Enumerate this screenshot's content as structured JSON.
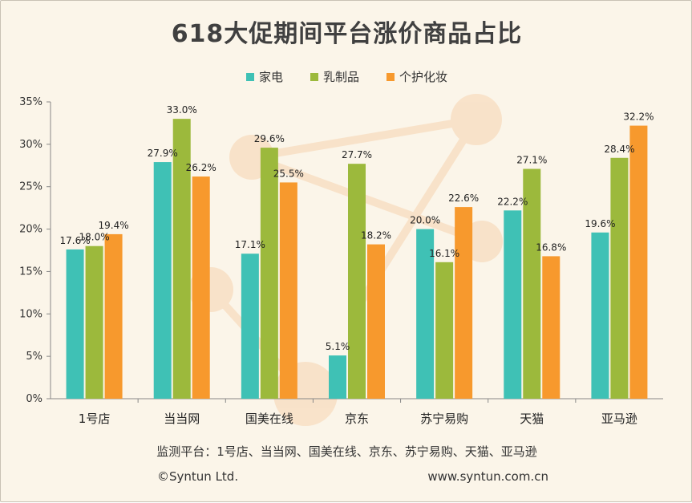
{
  "chart_data": {
    "type": "bar",
    "title": "618大促期间平台涨价商品占比",
    "categories": [
      "1号店",
      "当当网",
      "国美在线",
      "京东",
      "苏宁易购",
      "天猫",
      "亚马逊"
    ],
    "series": [
      {
        "name": "家电",
        "color": "#3fc1b5",
        "values": [
          17.6,
          27.9,
          17.1,
          5.1,
          20.0,
          22.2,
          19.6
        ],
        "labels": [
          "17.6%",
          "27.9%",
          "17.1%",
          "5.1%",
          "20.0%",
          "22.2%",
          "19.6%"
        ]
      },
      {
        "name": "乳制品",
        "color": "#9cb93c",
        "values": [
          18.0,
          33.0,
          29.6,
          27.7,
          16.1,
          27.1,
          28.4
        ],
        "labels": [
          "18.0%",
          "33.0%",
          "29.6%",
          "27.7%",
          "16.1%",
          "27.1%",
          "28.4%"
        ]
      },
      {
        "name": "个护化妆",
        "color": "#f7992d",
        "values": [
          19.4,
          26.2,
          25.5,
          18.2,
          22.6,
          16.8,
          32.2
        ],
        "labels": [
          "19.4%",
          "26.2%",
          "25.5%",
          "18.2%",
          "22.6%",
          "16.8%",
          "32.2%"
        ]
      }
    ],
    "ylim": [
      0,
      35
    ],
    "yticks": [
      "0%",
      "5%",
      "10%",
      "15%",
      "20%",
      "25%",
      "30%",
      "35%"
    ],
    "grid": false,
    "legend": "top-center"
  },
  "footer": {
    "platforms": "监测平台：1号店、当当网、国美在线、京东、苏宁易购、天猫、亚马逊",
    "copyright": "©Syntun Ltd.",
    "url": "www.syntun.com.cn"
  }
}
